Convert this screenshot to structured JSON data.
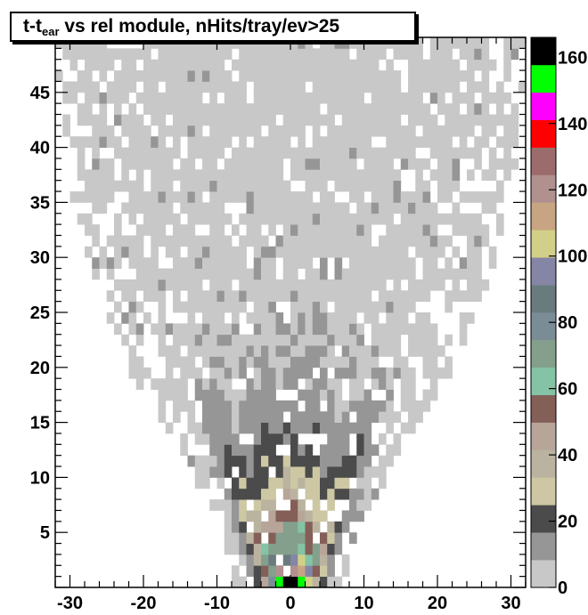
{
  "chart_data": {
    "type": "heatmap",
    "title": {
      "main": "t-t",
      "subscript": "ear",
      "rest": " vs rel module, nHits/tray/ev>25"
    },
    "xlabel": "",
    "ylabel": "",
    "xlim": [
      -32,
      32
    ],
    "ylim": [
      0,
      50
    ],
    "x_ticks": [
      -30,
      -20,
      -10,
      0,
      10,
      20,
      30
    ],
    "y_ticks": [
      5,
      10,
      15,
      20,
      25,
      30,
      35,
      40,
      45
    ],
    "z_range": [
      0,
      166
    ],
    "z_ticks": [
      0,
      20,
      40,
      60,
      80,
      100,
      120,
      140,
      160
    ],
    "x_bins": 64,
    "y_bins": 50,
    "palette": [
      "#c8c8c8",
      "#969696",
      "#4b4b4b",
      "#cdc8a3",
      "#bab3a0",
      "#b8a59a",
      "#845f57",
      "#84c3a5",
      "#84a08c",
      "#7a8d96",
      "#6a7b7e",
      "#8585a5",
      "#d2cf88",
      "#c7a582",
      "#b0918f",
      "#9c6b6b",
      "#ff0000",
      "#ff00ff",
      "#00ff00",
      "#000000"
    ],
    "profile": {
      "description": "distribution concentrated near relative module 0 at small t-t_ear, broadening with t",
      "peak": {
        "x": 0,
        "y": 0.5,
        "value": 166
      },
      "cone": [
        {
          "y": 1,
          "halfwidth": 8
        },
        {
          "y": 5,
          "halfwidth": 9
        },
        {
          "y": 10,
          "halfwidth": 13
        },
        {
          "y": 15,
          "halfwidth": 17
        },
        {
          "y": 20,
          "halfwidth": 22
        },
        {
          "y": 30,
          "halfwidth": 28
        },
        {
          "y": 40,
          "halfwidth": 31
        },
        {
          "y": 50,
          "halfwidth": 32
        }
      ]
    },
    "legend": "none",
    "grid": false
  }
}
